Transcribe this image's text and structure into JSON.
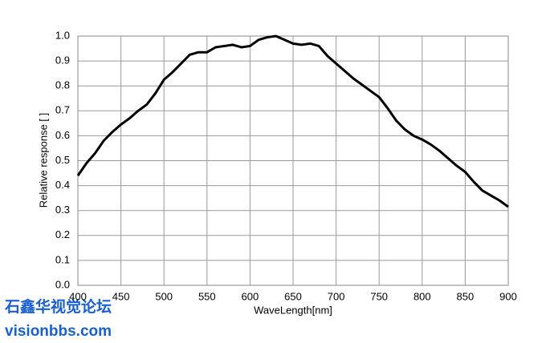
{
  "chart_data": {
    "type": "line",
    "xlabel": "WaveLength[nm]",
    "ylabel": "Relative response [ ]",
    "x": [
      400,
      410,
      420,
      430,
      440,
      450,
      460,
      470,
      480,
      490,
      500,
      510,
      520,
      530,
      540,
      550,
      560,
      570,
      580,
      590,
      600,
      610,
      620,
      630,
      640,
      650,
      660,
      670,
      680,
      690,
      700,
      710,
      720,
      730,
      740,
      750,
      760,
      770,
      780,
      790,
      800,
      810,
      820,
      830,
      840,
      850,
      860,
      870,
      880,
      890,
      900
    ],
    "series": [
      {
        "color": "#000000",
        "values": [
          0.44,
          0.49,
          0.53,
          0.58,
          0.615,
          0.645,
          0.67,
          0.7,
          0.725,
          0.77,
          0.825,
          0.855,
          0.89,
          0.925,
          0.935,
          0.935,
          0.955,
          0.96,
          0.965,
          0.955,
          0.96,
          0.985,
          0.995,
          1.0,
          0.985,
          0.97,
          0.965,
          0.97,
          0.96,
          0.92,
          0.89,
          0.86,
          0.83,
          0.805,
          0.78,
          0.755,
          0.71,
          0.66,
          0.625,
          0.6,
          0.585,
          0.565,
          0.54,
          0.51,
          0.48,
          0.455,
          0.415,
          0.38,
          0.36,
          0.34,
          0.315
        ]
      }
    ],
    "xlim": [
      400,
      900
    ],
    "xticks": [
      400,
      450,
      500,
      550,
      600,
      650,
      700,
      750,
      800,
      850,
      900
    ],
    "ylim": [
      0,
      1
    ],
    "yticks": [
      {
        "value": 0,
        "label": "0.0"
      },
      0.1,
      0.2,
      0.3,
      0.4,
      0.5,
      0.6,
      0.7,
      0.8,
      0.9,
      {
        "value": 1,
        "label": "1.0"
      }
    ],
    "grid": true,
    "watermark": [
      "石鑫华视觉论坛",
      "visionbbs.com"
    ]
  }
}
